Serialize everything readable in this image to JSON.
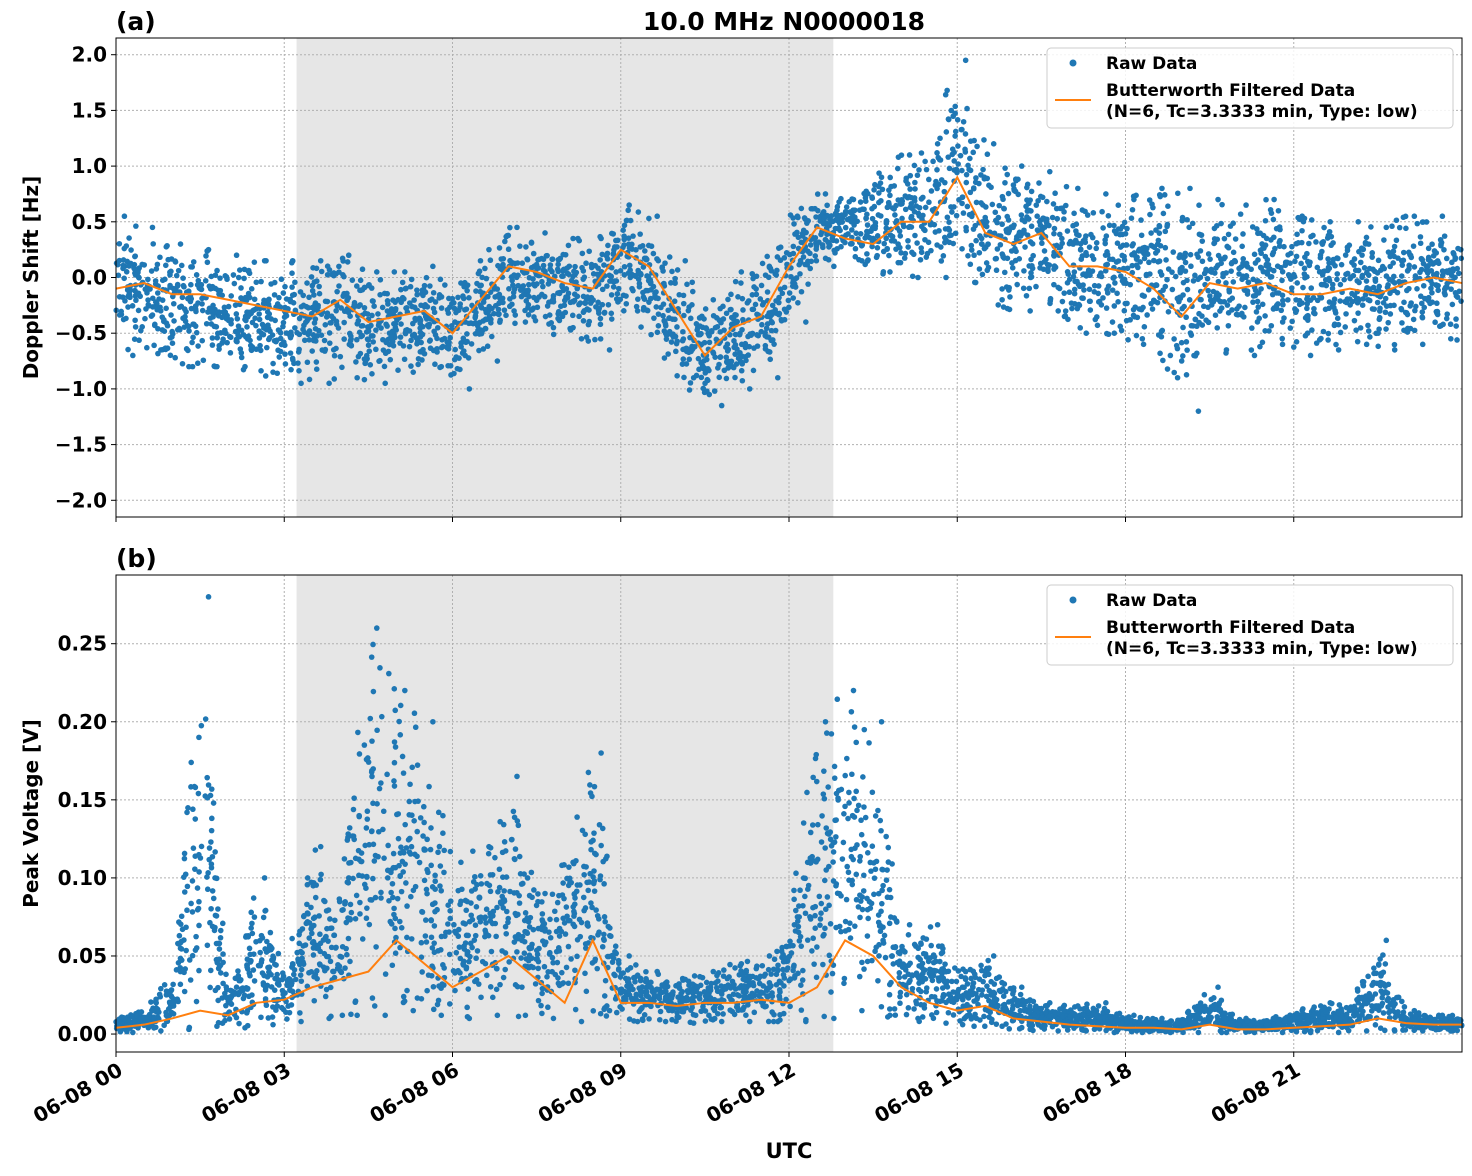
{
  "title": "10.0 MHz N0000018",
  "xlabel": "UTC",
  "legend": {
    "raw": "Raw Data",
    "filtered_line1": "Butterworth Filtered Data",
    "filtered_line2": "(N=6, Tc=3.3333 min, Type: low)"
  },
  "colors": {
    "raw": "#1f77b4",
    "filtered": "#ff7f0e",
    "shade": "#e6e6e6",
    "grid": "#b0b0b0"
  },
  "chart_data": [
    {
      "type": "scatter",
      "panel_label": "(a)",
      "ylabel": "Doppler Shift [Hz]",
      "xlim_hours": [
        0,
        24
      ],
      "ylim": [
        -2.15,
        2.15
      ],
      "x_ticks": [
        "06-08 00",
        "06-08 03",
        "06-08 06",
        "06-08 09",
        "06-08 12",
        "06-08 15",
        "06-08 18",
        "06-08 21"
      ],
      "x_tick_hours": [
        0,
        3,
        6,
        9,
        12,
        15,
        18,
        21
      ],
      "y_ticks": [
        -2.0,
        -1.5,
        -1.0,
        -0.5,
        0.0,
        0.5,
        1.0,
        1.5,
        2.0
      ],
      "y_tick_labels": [
        "−2.0",
        "−1.5",
        "−1.0",
        "−0.5",
        "0.0",
        "0.5",
        "1.0",
        "1.5",
        "2.0"
      ],
      "grid": true,
      "legend_placement": "top-right",
      "shaded_interval_hours": [
        3.22,
        12.79
      ],
      "x_hours": [
        0,
        0.5,
        1,
        1.5,
        2,
        2.5,
        3,
        3.5,
        4,
        4.5,
        5,
        5.5,
        6,
        6.5,
        7,
        7.5,
        8,
        8.5,
        9,
        9.5,
        10,
        10.5,
        11,
        11.5,
        12,
        12.5,
        13,
        13.5,
        14,
        14.5,
        15,
        15.5,
        16,
        16.5,
        17,
        17.5,
        18,
        18.5,
        19,
        19.5,
        20,
        20.5,
        21,
        21.5,
        22,
        22.5,
        23,
        23.5,
        24
      ],
      "series": [
        {
          "name": "Butterworth Filtered Data",
          "kind": "line",
          "values": [
            -0.1,
            -0.05,
            -0.15,
            -0.15,
            -0.2,
            -0.25,
            -0.3,
            -0.35,
            -0.2,
            -0.4,
            -0.35,
            -0.3,
            -0.5,
            -0.2,
            0.1,
            0.05,
            -0.05,
            -0.1,
            0.25,
            0.1,
            -0.3,
            -0.7,
            -0.45,
            -0.35,
            0.1,
            0.45,
            0.35,
            0.3,
            0.5,
            0.5,
            0.9,
            0.4,
            0.3,
            0.4,
            0.1,
            0.1,
            0.05,
            -0.1,
            -0.35,
            -0.05,
            -0.1,
            -0.05,
            -0.15,
            -0.15,
            -0.1,
            -0.15,
            -0.05,
            0.0,
            -0.05
          ]
        },
        {
          "name": "Raw Data",
          "kind": "scatter-envelope",
          "low": [
            -0.7,
            -0.65,
            -0.8,
            -0.8,
            -0.8,
            -0.85,
            -0.95,
            -0.95,
            -0.9,
            -0.95,
            -0.85,
            -0.8,
            -1.0,
            -0.75,
            -0.4,
            -0.45,
            -0.55,
            -0.65,
            -0.3,
            -0.5,
            -0.9,
            -1.15,
            -1.0,
            -0.9,
            -0.4,
            0.1,
            0.15,
            0.05,
            0.0,
            0.0,
            0.2,
            -0.2,
            -0.3,
            -0.3,
            -0.5,
            -0.5,
            -0.55,
            -0.7,
            -1.2,
            -0.65,
            -0.7,
            -0.6,
            -0.7,
            -0.65,
            -0.6,
            -0.65,
            -0.6,
            -0.55,
            -0.6
          ],
          "high": [
            0.55,
            0.45,
            0.3,
            0.25,
            0.2,
            0.15,
            0.15,
            0.15,
            0.2,
            0.05,
            0.05,
            0.1,
            -0.05,
            0.25,
            0.45,
            0.4,
            0.35,
            0.35,
            0.65,
            0.55,
            0.15,
            -0.2,
            0.05,
            0.1,
            0.55,
            0.75,
            0.7,
            0.9,
            1.1,
            1.2,
            1.95,
            1.2,
            1.0,
            0.95,
            0.8,
            0.75,
            0.7,
            0.8,
            0.8,
            0.7,
            0.65,
            0.7,
            0.55,
            0.5,
            0.5,
            0.45,
            0.55,
            0.55,
            0.55
          ]
        }
      ]
    },
    {
      "type": "scatter",
      "panel_label": "(b)",
      "ylabel": "Peak Voltage [V]",
      "xlim_hours": [
        0,
        24
      ],
      "ylim": [
        -0.0115,
        0.294
      ],
      "x_ticks": [
        "06-08 00",
        "06-08 03",
        "06-08 06",
        "06-08 09",
        "06-08 12",
        "06-08 15",
        "06-08 18",
        "06-08 21"
      ],
      "x_tick_hours": [
        0,
        3,
        6,
        9,
        12,
        15,
        18,
        21
      ],
      "y_ticks": [
        0.0,
        0.05,
        0.1,
        0.15,
        0.2,
        0.25
      ],
      "y_tick_labels": [
        "0.00",
        "0.05",
        "0.10",
        "0.15",
        "0.20",
        "0.25"
      ],
      "grid": true,
      "legend_placement": "top-right",
      "shaded_interval_hours": [
        3.22,
        12.79
      ],
      "x_hours": [
        0,
        0.5,
        1,
        1.5,
        2,
        2.5,
        3,
        3.5,
        4,
        4.5,
        5,
        5.5,
        6,
        6.5,
        7,
        7.5,
        8,
        8.5,
        9,
        9.5,
        10,
        10.5,
        11,
        11.5,
        12,
        12.5,
        13,
        13.5,
        14,
        14.5,
        15,
        15.5,
        16,
        16.5,
        17,
        17.5,
        18,
        18.5,
        19,
        19.5,
        20,
        20.5,
        21,
        21.5,
        22,
        22.5,
        23,
        23.5,
        24
      ],
      "series": [
        {
          "name": "Butterworth Filtered Data",
          "kind": "line",
          "values": [
            0.004,
            0.006,
            0.01,
            0.015,
            0.012,
            0.02,
            0.022,
            0.03,
            0.035,
            0.04,
            0.06,
            0.045,
            0.03,
            0.04,
            0.05,
            0.035,
            0.02,
            0.06,
            0.02,
            0.02,
            0.018,
            0.02,
            0.02,
            0.022,
            0.02,
            0.03,
            0.06,
            0.05,
            0.03,
            0.02,
            0.015,
            0.018,
            0.01,
            0.008,
            0.006,
            0.005,
            0.004,
            0.004,
            0.003,
            0.006,
            0.003,
            0.003,
            0.004,
            0.005,
            0.006,
            0.01,
            0.007,
            0.006,
            0.006
          ]
        },
        {
          "name": "Raw Data",
          "kind": "scatter-envelope",
          "low": [
            0.001,
            0.002,
            0.003,
            0.005,
            0.004,
            0.006,
            0.008,
            0.01,
            0.012,
            0.012,
            0.015,
            0.012,
            0.01,
            0.012,
            0.012,
            0.01,
            0.008,
            0.015,
            0.008,
            0.008,
            0.007,
            0.008,
            0.008,
            0.008,
            0.008,
            0.01,
            0.015,
            0.012,
            0.01,
            0.007,
            0.005,
            0.005,
            0.003,
            0.002,
            0.002,
            0.001,
            0.001,
            0.001,
            0.001,
            0.001,
            0.001,
            0.001,
            0.001,
            0.001,
            0.002,
            0.002,
            0.002,
            0.002,
            0.002
          ],
          "high": [
            0.01,
            0.015,
            0.04,
            0.28,
            0.03,
            0.1,
            0.045,
            0.12,
            0.1,
            0.26,
            0.22,
            0.2,
            0.11,
            0.12,
            0.165,
            0.09,
            0.11,
            0.18,
            0.05,
            0.04,
            0.035,
            0.04,
            0.045,
            0.05,
            0.075,
            0.2,
            0.22,
            0.2,
            0.07,
            0.07,
            0.04,
            0.05,
            0.03,
            0.02,
            0.018,
            0.02,
            0.012,
            0.01,
            0.01,
            0.03,
            0.01,
            0.01,
            0.015,
            0.02,
            0.02,
            0.06,
            0.015,
            0.012,
            0.012
          ]
        }
      ]
    }
  ]
}
